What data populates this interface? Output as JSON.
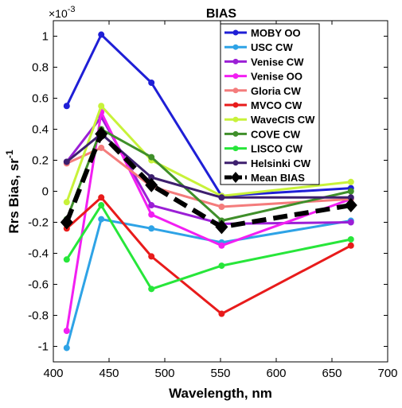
{
  "chart_data": {
    "type": "line",
    "title": "BIAS",
    "xlabel": "Wavelength, nm",
    "ylabel_main": "Rrs Bias, sr",
    "ylabel_sup": "-1",
    "y_multiplier": "×10",
    "y_multiplier_exp": "-3",
    "xlim": [
      400,
      700
    ],
    "ylim": [
      -1.1,
      1.1
    ],
    "xticks": [
      "400",
      "450",
      "500",
      "550",
      "600",
      "650",
      "700"
    ],
    "yticks": [
      "-1",
      "-0.8",
      "-0.6",
      "-0.4",
      "-0.2",
      "0",
      "0.2",
      "0.4",
      "0.6",
      "0.8",
      "1"
    ],
    "xtick_values": [
      400,
      450,
      500,
      550,
      600,
      650,
      700
    ],
    "ytick_values": [
      -1,
      -0.8,
      -0.6,
      -0.4,
      -0.2,
      0,
      0.2,
      0.4,
      0.6,
      0.8,
      1
    ],
    "x": [
      412,
      443,
      488,
      551,
      667
    ],
    "legend_position": "top-right",
    "grid": false,
    "series": [
      {
        "name": "MOBY OO",
        "color": "#1f1fd6",
        "values": [
          0.55,
          1.01,
          0.7,
          -0.03,
          0.02
        ],
        "dashed": false
      },
      {
        "name": "USC CW",
        "color": "#2ea3e6",
        "values": [
          -1.01,
          -0.18,
          -0.24,
          -0.33,
          -0.19
        ],
        "dashed": false
      },
      {
        "name": "Venise CW",
        "color": "#9b1fd6",
        "values": [
          0.19,
          0.48,
          -0.09,
          -0.21,
          -0.2
        ],
        "dashed": false
      },
      {
        "name": "Venise OO",
        "color": "#f21ff2",
        "values": [
          -0.9,
          0.51,
          -0.15,
          -0.35,
          -0.05
        ],
        "dashed": false
      },
      {
        "name": "Gloria CW",
        "color": "#f47c7c",
        "values": [
          0.18,
          0.28,
          0.03,
          -0.1,
          -0.05
        ],
        "dashed": false
      },
      {
        "name": "MVCO CW",
        "color": "#e81b1b",
        "values": [
          -0.24,
          -0.04,
          -0.42,
          -0.79,
          -0.35
        ],
        "dashed": false
      },
      {
        "name": "WaveCIS CW",
        "color": "#c8f23a",
        "values": [
          -0.07,
          0.55,
          0.2,
          -0.03,
          0.06
        ],
        "dashed": false
      },
      {
        "name": "COVE CW",
        "color": "#3f8f2a",
        "values": [
          -0.18,
          0.4,
          0.22,
          -0.19,
          0.0
        ],
        "dashed": false
      },
      {
        "name": "LISCO CW",
        "color": "#27e63a",
        "values": [
          -0.44,
          -0.09,
          -0.63,
          -0.48,
          -0.31
        ],
        "dashed": false
      },
      {
        "name": "Helsinki CW",
        "color": "#3d1f6e",
        "values": [
          0.19,
          0.37,
          0.09,
          -0.04,
          -0.04
        ],
        "dashed": false
      },
      {
        "name": "Mean BIAS",
        "color": "#000000",
        "values": [
          -0.2,
          0.37,
          0.04,
          -0.23,
          -0.09
        ],
        "dashed": true
      }
    ]
  }
}
